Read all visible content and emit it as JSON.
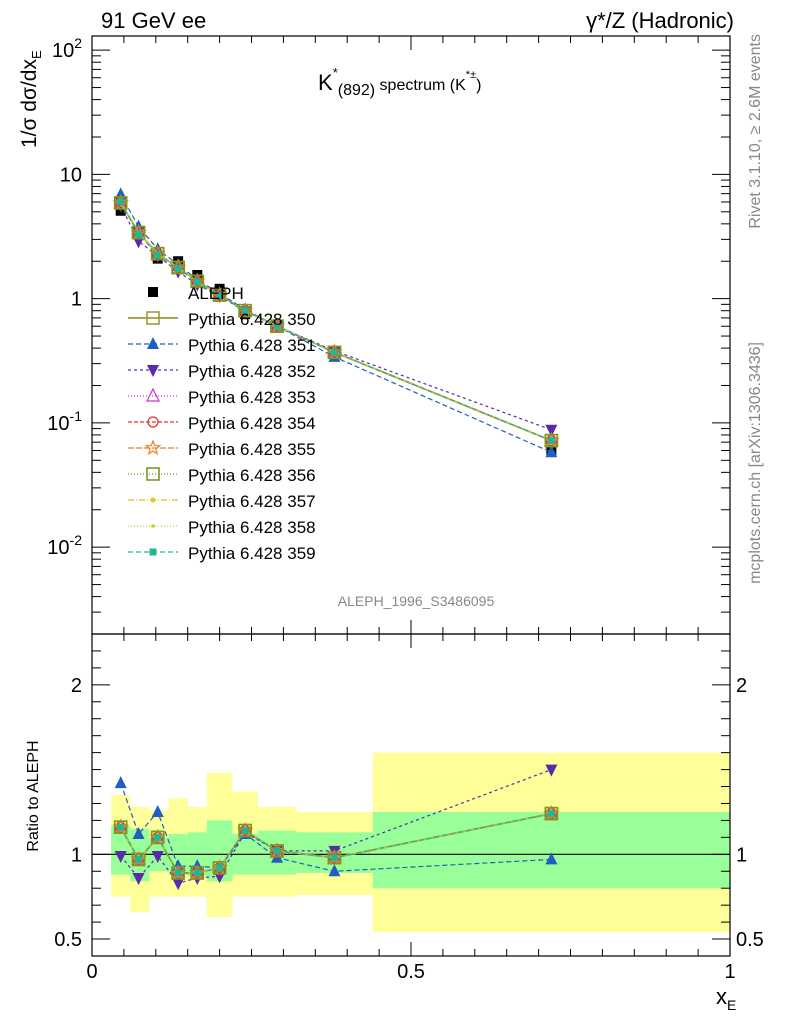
{
  "header": {
    "left": "91 GeV ee",
    "right": "γ*/Z (Hadronic)"
  },
  "side_text": {
    "upper": "Rivet 3.1.10, ≥ 2.6M events",
    "lower": "mcplots.cern.ch [arXiv:1306.3436]"
  },
  "chart_data": {
    "type": "scatter",
    "title": {
      "base": "K",
      "sup": "*",
      "sub": "(892)",
      "text": " spectrum (K",
      "sup2": "*±",
      "end": ")"
    },
    "analysis_label": "ALEPH_1996_S3486095",
    "xlabel": "x",
    "xlabel_sub": "E",
    "ylabel_top": "1/σ dσ/dx",
    "ylabel_top_sub": "E",
    "ylabel_bottom": "Ratio to ALEPH",
    "xlim": [
      0,
      1
    ],
    "ylim_top": [
      0.002,
      130
    ],
    "ylog_top": true,
    "ylim_bottom": [
      0.4,
      2.3
    ],
    "x_ticks": [
      "0",
      "0.5",
      "1"
    ],
    "y_ticks_top": [
      "10^2",
      "10",
      "1",
      "10^-1",
      "10^-2"
    ],
    "y_ticks_bottom": [
      "0.5",
      "1",
      "2"
    ],
    "x": [
      0.045,
      0.073,
      0.103,
      0.135,
      0.165,
      0.2,
      0.24,
      0.29,
      0.38,
      0.72
    ],
    "data": {
      "name": "ALEPH",
      "values": [
        5.1,
        3.5,
        2.1,
        2.0,
        1.55,
        1.2,
        0.75,
        0.6,
        0.37,
        0.06
      ],
      "ratio_band_inner": [
        [
          0.055,
          0.9
        ],
        [
          0.09,
          0.85
        ],
        [
          0.12,
          0.9
        ],
        [
          0.15,
          0.85
        ],
        [
          0.18,
          0.85
        ],
        [
          0.22,
          0.82
        ],
        [
          0.26,
          0.85
        ],
        [
          0.32,
          0.88
        ],
        [
          0.44,
          0.8
        ],
        [
          1.0,
          0.8
        ]
      ],
      "bands": [
        {
          "x0": 0.03,
          "x1": 0.06,
          "in_lo": 0.88,
          "in_hi": 1.17,
          "out_lo": 0.75,
          "out_hi": 1.35
        },
        {
          "x0": 0.06,
          "x1": 0.09,
          "in_lo": 0.84,
          "in_hi": 1.15,
          "out_lo": 0.66,
          "out_hi": 1.28
        },
        {
          "x0": 0.09,
          "x1": 0.12,
          "in_lo": 0.9,
          "in_hi": 1.1,
          "out_lo": 0.75,
          "out_hi": 1.26
        },
        {
          "x0": 0.12,
          "x1": 0.15,
          "in_lo": 0.88,
          "in_hi": 1.12,
          "out_lo": 0.75,
          "out_hi": 1.33
        },
        {
          "x0": 0.15,
          "x1": 0.18,
          "in_lo": 0.87,
          "in_hi": 1.13,
          "out_lo": 0.75,
          "out_hi": 1.28
        },
        {
          "x0": 0.18,
          "x1": 0.22,
          "in_lo": 0.84,
          "in_hi": 1.2,
          "out_lo": 0.63,
          "out_hi": 1.48
        },
        {
          "x0": 0.22,
          "x1": 0.26,
          "in_lo": 0.88,
          "in_hi": 1.12,
          "out_lo": 0.75,
          "out_hi": 1.37
        },
        {
          "x0": 0.26,
          "x1": 0.32,
          "in_lo": 0.88,
          "in_hi": 1.14,
          "out_lo": 0.75,
          "out_hi": 1.28
        },
        {
          "x0": 0.32,
          "x1": 0.44,
          "in_lo": 0.89,
          "in_hi": 1.13,
          "out_lo": 0.76,
          "out_hi": 1.25
        },
        {
          "x0": 0.44,
          "x1": 1.0,
          "in_lo": 0.8,
          "in_hi": 1.25,
          "out_lo": 0.54,
          "out_hi": 1.6
        }
      ]
    },
    "series": [
      {
        "name": "Pythia 6.428 350",
        "color": "#9c9c3a",
        "marker": "square-open",
        "dash": "",
        "values": [
          5.9,
          3.4,
          2.3,
          1.78,
          1.38,
          1.07,
          0.8,
          0.6,
          0.37,
          0.072
        ],
        "ratio": [
          1.16,
          0.97,
          1.1,
          0.89,
          0.89,
          0.92,
          1.14,
          1.02,
          0.98,
          1.24
        ]
      },
      {
        "name": "Pythia 6.428 351",
        "color": "#1f5fbf",
        "marker": "triangle-up",
        "dash": "5,3",
        "values": [
          6.9,
          3.8,
          2.5,
          1.88,
          1.42,
          1.1,
          0.82,
          0.6,
          0.34,
          0.058
        ],
        "ratio": [
          1.42,
          1.12,
          1.25,
          0.93,
          0.93,
          0.92,
          1.12,
          0.98,
          0.9,
          0.97
        ]
      },
      {
        "name": "Pythia 6.428 352",
        "color": "#5a2aa8",
        "marker": "triangle-down",
        "dash": "3,3",
        "values": [
          5.6,
          2.9,
          2.2,
          1.65,
          1.3,
          1.05,
          0.79,
          0.6,
          0.38,
          0.088
        ],
        "ratio": [
          0.99,
          0.86,
          0.99,
          0.83,
          0.86,
          0.87,
          1.13,
          1.02,
          1.02,
          1.5
        ]
      },
      {
        "name": "Pythia 6.428 353",
        "color": "#cc33cc",
        "marker": "triangle-open",
        "dash": "1,2",
        "values": [
          5.9,
          3.4,
          2.3,
          1.78,
          1.38,
          1.07,
          0.8,
          0.6,
          0.37,
          0.072
        ],
        "ratio": [
          1.16,
          0.97,
          1.1,
          0.89,
          0.89,
          0.92,
          1.14,
          1.02,
          0.98,
          1.24
        ]
      },
      {
        "name": "Pythia 6.428 354",
        "color": "#e03030",
        "marker": "circle-open",
        "dash": "4,2",
        "values": [
          5.9,
          3.4,
          2.3,
          1.78,
          1.38,
          1.07,
          0.8,
          0.6,
          0.37,
          0.072
        ],
        "ratio": [
          1.16,
          0.97,
          1.1,
          0.89,
          0.89,
          0.92,
          1.14,
          1.02,
          0.98,
          1.24
        ]
      },
      {
        "name": "Pythia 6.428 355",
        "color": "#f08020",
        "marker": "star-open",
        "dash": "6,2",
        "values": [
          5.9,
          3.4,
          2.3,
          1.78,
          1.38,
          1.07,
          0.8,
          0.6,
          0.37,
          0.072
        ],
        "ratio": [
          1.16,
          0.97,
          1.1,
          0.89,
          0.89,
          0.92,
          1.14,
          1.02,
          0.98,
          1.24
        ]
      },
      {
        "name": "Pythia 6.428 356",
        "color": "#7a9a20",
        "marker": "square-open",
        "dash": "1,2",
        "values": [
          5.9,
          3.4,
          2.3,
          1.78,
          1.38,
          1.07,
          0.8,
          0.6,
          0.37,
          0.072
        ],
        "ratio": [
          1.16,
          0.97,
          1.1,
          0.89,
          0.89,
          0.92,
          1.14,
          1.02,
          0.98,
          1.24
        ]
      },
      {
        "name": "Pythia 6.428 357",
        "color": "#e8c020",
        "marker": "dot",
        "dash": "6,2,1,2",
        "values": [
          5.9,
          3.4,
          2.3,
          1.78,
          1.38,
          1.07,
          0.8,
          0.6,
          0.37,
          0.072
        ],
        "ratio": [
          1.16,
          0.97,
          1.1,
          0.89,
          0.89,
          0.92,
          1.14,
          1.02,
          0.98,
          1.24
        ]
      },
      {
        "name": "Pythia 6.428 358",
        "color": "#c8d020",
        "marker": "dot-small",
        "dash": "1,2",
        "values": [
          5.9,
          3.4,
          2.3,
          1.78,
          1.38,
          1.07,
          0.8,
          0.6,
          0.37,
          0.072
        ],
        "ratio": [
          1.16,
          0.97,
          1.1,
          0.89,
          0.89,
          0.92,
          1.14,
          1.02,
          0.98,
          1.24
        ]
      },
      {
        "name": "Pythia 6.428 359",
        "color": "#20b890",
        "marker": "square-small",
        "dash": "5,3",
        "values": [
          6.0,
          3.3,
          2.25,
          1.75,
          1.36,
          1.06,
          0.8,
          0.6,
          0.37,
          0.072
        ],
        "ratio": [
          1.16,
          0.97,
          1.1,
          0.89,
          0.89,
          0.92,
          1.14,
          1.02,
          0.98,
          1.24
        ]
      }
    ],
    "band_colors": {
      "inner": "#99ff99",
      "outer": "#ffff99"
    },
    "grid": false,
    "legend_placement": "middle-left"
  }
}
